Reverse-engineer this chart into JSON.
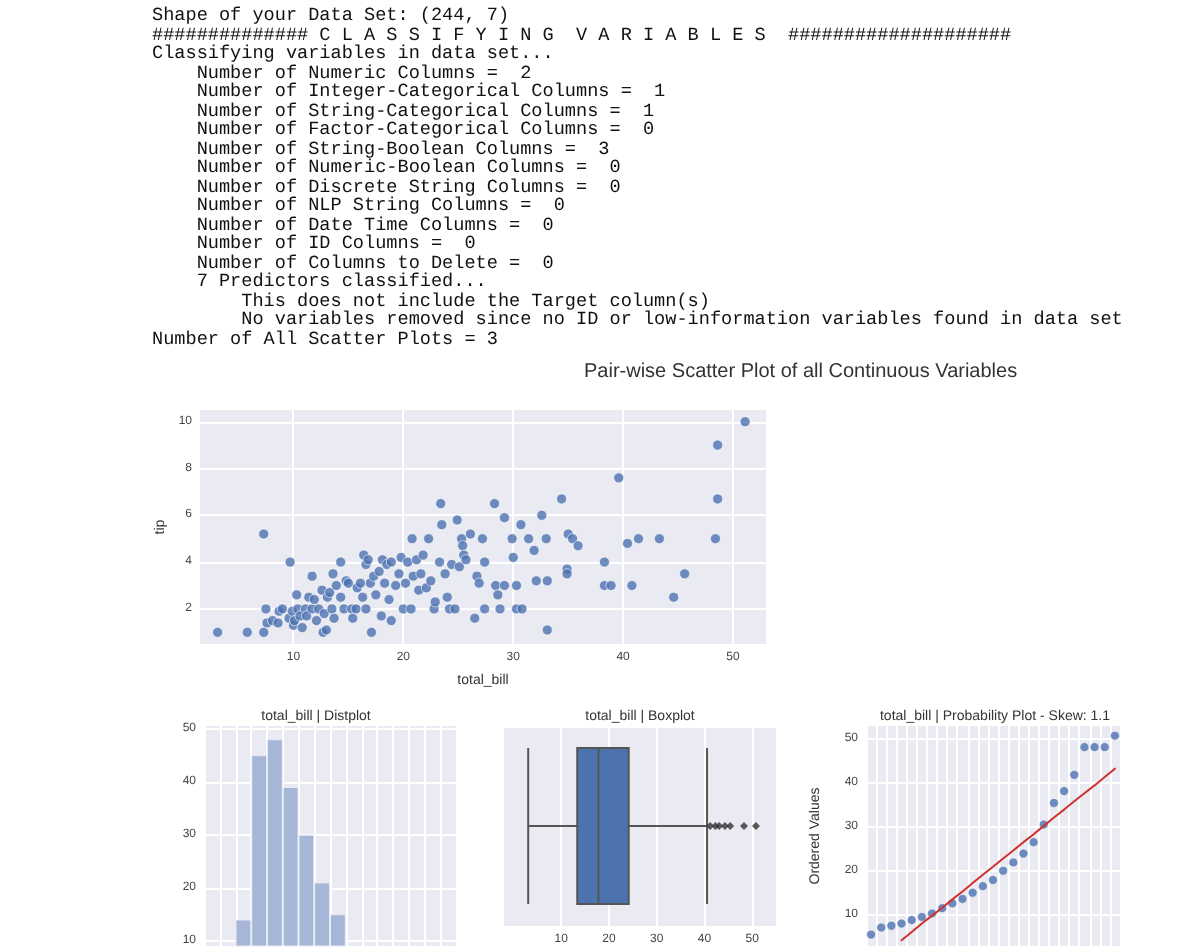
{
  "chart_data": [
    {
      "type": "other",
      "annotations": [
        "Shape of your Data Set: (244, 7)",
        "############## C L A S S I F Y I N G  V A R I A B L E S  ####################",
        "Classifying variables in data set...",
        "    Number of Numeric Columns =  2",
        "    Number of Integer-Categorical Columns =  1",
        "    Number of String-Categorical Columns =  1",
        "    Number of Factor-Categorical Columns =  0",
        "    Number of String-Boolean Columns =  3",
        "    Number of Numeric-Boolean Columns =  0",
        "    Number of Discrete String Columns =  0",
        "    Number of NLP String Columns =  0",
        "    Number of Date Time Columns =  0",
        "    Number of ID Columns =  0",
        "    Number of Columns to Delete =  0",
        "    7 Predictors classified...",
        "        This does not include the Target column(s)",
        "        No variables removed since no ID or low-information variables found in data set",
        "Number of All Scatter Plots = 3"
      ]
    },
    {
      "type": "scatter",
      "title": "Pair-wise Scatter Plot of all Continuous Variables",
      "xlabel": "total_bill",
      "ylabel": "tip",
      "color": "#4c72b0",
      "marker": "circle",
      "grid": true,
      "xlim": [
        1.5,
        53
      ],
      "xticks": [
        10,
        20,
        30,
        40,
        50
      ],
      "ylim": [
        0.5,
        10.5
      ],
      "yticks": [
        2,
        4,
        6,
        8,
        10
      ],
      "x": [
        3.1,
        5.8,
        7.3,
        7.3,
        7.5,
        7.6,
        8.1,
        8.6,
        8.7,
        9.0,
        9.7,
        9.6,
        9.9,
        10.0,
        10.1,
        10.3,
        10.4,
        10.6,
        10.8,
        11.1,
        11.2,
        11.4,
        11.7,
        11.7,
        11.9,
        12.1,
        12.3,
        12.6,
        12.7,
        12.8,
        13.0,
        13.1,
        13.3,
        13.6,
        13.5,
        13.7,
        13.9,
        14.3,
        14.3,
        14.6,
        14.8,
        15.0,
        15.3,
        15.4,
        15.7,
        15.8,
        16.1,
        16.3,
        16.4,
        16.6,
        16.6,
        16.8,
        17.0,
        17.1,
        17.3,
        17.5,
        17.8,
        18.0,
        18.1,
        18.3,
        18.5,
        18.7,
        18.9,
        18.9,
        19.3,
        19.6,
        19.8,
        20.0,
        20.2,
        20.4,
        20.7,
        20.8,
        20.9,
        21.2,
        21.4,
        21.6,
        21.8,
        22.1,
        22.3,
        22.5,
        22.8,
        22.9,
        23.3,
        23.4,
        23.5,
        23.8,
        24.0,
        24.2,
        24.4,
        24.7,
        24.9,
        25.1,
        25.3,
        25.4,
        25.5,
        25.7,
        26.1,
        26.5,
        26.7,
        26.9,
        27.2,
        27.4,
        27.4,
        28.3,
        28.4,
        28.6,
        28.8,
        29.2,
        29.2,
        29.9,
        30.0,
        30.3,
        30.3,
        30.7,
        30.8,
        31.4,
        31.9,
        32.1,
        32.6,
        33.0,
        33.1,
        33.1,
        34.4,
        34.9,
        34.9,
        35.0,
        35.4,
        35.9,
        38.3,
        38.3,
        38.9,
        39.6,
        40.4,
        40.8,
        41.4,
        43.3,
        44.6,
        45.6,
        48.4,
        48.6,
        48.6,
        51.1
      ],
      "values": [
        1.0,
        1.0,
        5.2,
        1.0,
        2.0,
        1.4,
        1.5,
        1.4,
        1.9,
        2.0,
        4.0,
        1.6,
        1.9,
        1.3,
        1.5,
        2.6,
        2.0,
        1.7,
        1.2,
        2.0,
        1.7,
        2.5,
        3.4,
        2.0,
        2.4,
        1.5,
        2.0,
        2.8,
        1.0,
        1.8,
        1.1,
        2.5,
        2.7,
        3.5,
        2.0,
        1.6,
        3.0,
        4.0,
        2.5,
        2.0,
        3.2,
        3.1,
        2.0,
        1.6,
        2.0,
        2.9,
        3.1,
        2.5,
        4.3,
        3.9,
        2.0,
        4.1,
        3.1,
        1.0,
        3.4,
        2.6,
        3.6,
        1.7,
        4.1,
        3.1,
        3.9,
        2.4,
        4.0,
        1.5,
        3.0,
        3.5,
        4.2,
        2.0,
        3.1,
        4.0,
        2.0,
        5.0,
        3.4,
        4.1,
        2.8,
        3.5,
        4.3,
        2.9,
        5.0,
        3.2,
        2.0,
        2.3,
        4.0,
        6.5,
        5.6,
        3.5,
        2.5,
        2.0,
        3.9,
        2.0,
        5.8,
        3.8,
        5.0,
        4.7,
        4.3,
        4.1,
        5.2,
        1.6,
        3.4,
        3.1,
        5.0,
        4.0,
        2.0,
        6.5,
        3.0,
        2.6,
        2.0,
        5.9,
        3.0,
        5.0,
        4.2,
        3.0,
        2.0,
        5.6,
        2.0,
        5.0,
        4.5,
        3.2,
        6.0,
        5.0,
        1.1,
        3.2,
        6.7,
        3.7,
        3.5,
        5.2,
        5.0,
        4.7,
        4.0,
        3.0,
        3.0,
        7.6,
        4.8,
        3.0,
        5.0,
        5.0,
        2.5,
        3.5,
        5.0,
        6.7,
        9.0,
        10.0
      ]
    },
    {
      "type": "bar",
      "title": "total_bill | Distplot",
      "color": "#a5b6d9",
      "grid": true,
      "tick_labels": "y",
      "ylim": [
        9,
        50.5
      ],
      "yticks": [
        10,
        20,
        30,
        40,
        50
      ],
      "categories": [
        null,
        null,
        null,
        null,
        null,
        null,
        null,
        null,
        null,
        null,
        null,
        null,
        null,
        null,
        null,
        null
      ],
      "values": [
        null,
        null,
        14,
        45,
        48,
        39,
        30,
        21,
        15,
        null,
        null,
        null,
        null,
        null,
        null,
        null
      ]
    },
    {
      "type": "box",
      "title": "total_bill | Boxplot",
      "orientation": "horizontal",
      "color": "#4c72b0",
      "grid": true,
      "xlim": [
        -2,
        55
      ],
      "xticks": [
        10,
        20,
        30,
        40,
        50
      ],
      "categories": [
        null
      ],
      "boxes": [
        {
          "low": 3.07,
          "q1": 13.35,
          "median": 17.8,
          "q3": 24.13,
          "high": 40.55,
          "outliers": [
            41.2,
            42.3,
            43.1,
            44.3,
            45.4,
            48.3,
            50.8
          ]
        }
      ]
    },
    {
      "type": "scatter",
      "title": "total_bill | Probability Plot - Skew: 1.1",
      "ylabel": "Ordered Values",
      "grid": true,
      "tick_labels": "y",
      "ylim": [
        3,
        53
      ],
      "yticks": [
        10,
        20,
        30,
        40,
        50
      ],
      "categories": [
        null,
        null,
        null,
        null,
        null,
        null,
        null,
        null,
        null,
        null,
        null,
        null,
        null,
        null,
        null,
        null,
        null,
        null,
        null,
        null,
        null,
        null,
        null,
        null,
        null
      ],
      "series": [
        {
          "type": "scatter",
          "marker": "circle",
          "color": "#4c72b0",
          "values": [
            5.6,
            7.2,
            7.6,
            8.1,
            8.9,
            9.6,
            10.4,
            11.6,
            12.7,
            13.7,
            15.1,
            16.6,
            18.0,
            20.1,
            22.0,
            24.0,
            26.6,
            30.6,
            35.5,
            38.2,
            41.9,
            48.2,
            48.2,
            48.2,
            50.8
          ]
        },
        {
          "type": "line",
          "marker": "none",
          "line_style": "solid",
          "color": "#d0312d",
          "values": [
            null,
            null,
            null,
            4.3,
            6.2,
            8.1,
            9.9,
            11.7,
            13.6,
            15.4,
            17.3,
            19.2,
            21.0,
            22.9,
            24.7,
            26.6,
            28.4,
            30.3,
            32.2,
            34.0,
            35.9,
            37.7,
            39.5,
            41.4,
            43.3
          ]
        }
      ]
    }
  ]
}
